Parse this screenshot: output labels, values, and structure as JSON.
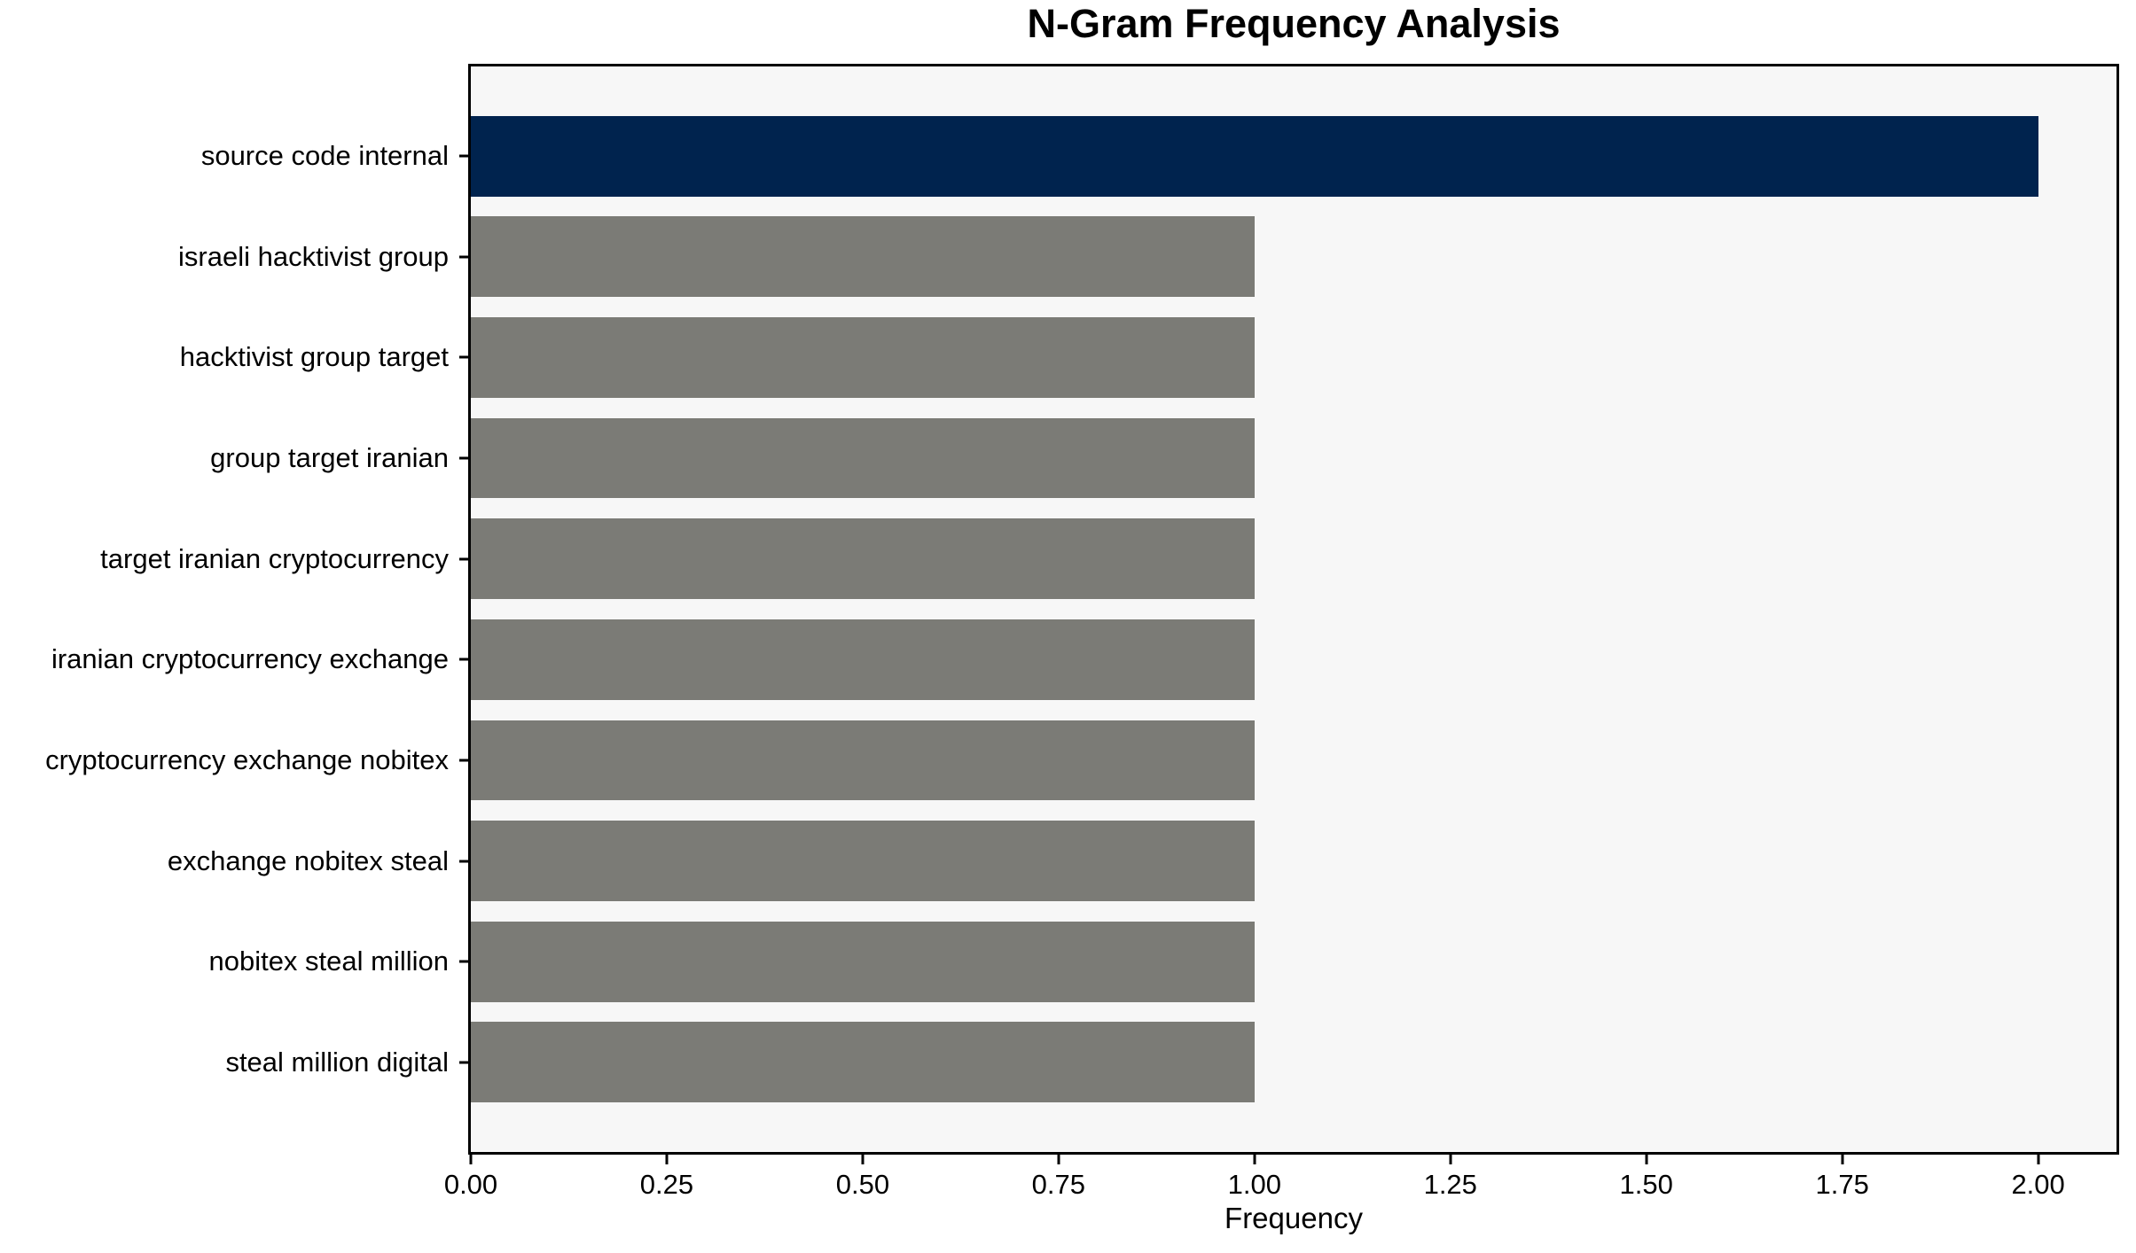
{
  "chart_data": {
    "type": "bar",
    "orientation": "horizontal",
    "title": "N-Gram Frequency Analysis",
    "xlabel": "Frequency",
    "ylabel": "",
    "categories": [
      "source code internal",
      "israeli hacktivist group",
      "hacktivist group target",
      "group target iranian",
      "target iranian cryptocurrency",
      "iranian cryptocurrency exchange",
      "cryptocurrency exchange nobitex",
      "exchange nobitex steal",
      "nobitex steal million",
      "steal million digital"
    ],
    "values": [
      2,
      1,
      1,
      1,
      1,
      1,
      1,
      1,
      1,
      1
    ],
    "bar_colors": [
      "#00234e",
      "#7b7b76",
      "#7b7b76",
      "#7b7b76",
      "#7b7b76",
      "#7b7b76",
      "#7b7b76",
      "#7b7b76",
      "#7b7b76",
      "#7b7b76"
    ],
    "xlim": [
      0,
      2.1
    ],
    "xticks": [
      0,
      0.25,
      0.5,
      0.75,
      1,
      1.25,
      1.5,
      1.75,
      2
    ],
    "xtick_labels": [
      "0.00",
      "0.25",
      "0.50",
      "0.75",
      "1.00",
      "1.25",
      "1.50",
      "1.75",
      "2.00"
    ],
    "bar_height_frac": 0.8,
    "grid": false,
    "legend_position": "none",
    "colors": {
      "highlight_bar": "#00234e",
      "default_bar": "#7b7b76",
      "plot_background": "#f7f7f7",
      "figure_background": "#ffffff",
      "spine": "#000000",
      "text": "#000000"
    }
  }
}
